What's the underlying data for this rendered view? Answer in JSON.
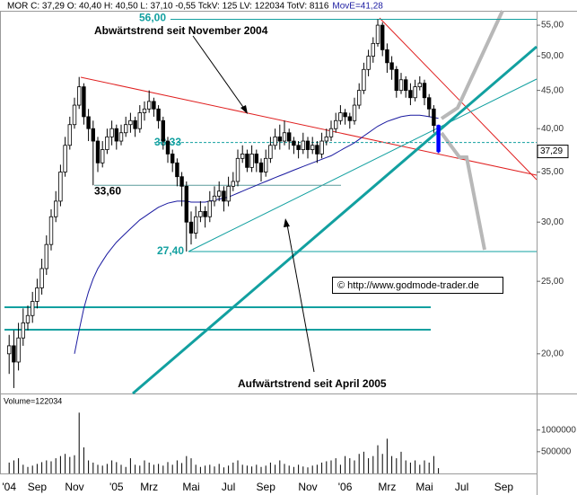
{
  "chart_data": {
    "type": "candlestick",
    "title": "MOR C: 37,29 O: 40,40 H: 40,50 L: 37,10 -0,55 TckV: 125 LV: 122034 TotV: 8116",
    "ma_label": "MovE=41,28",
    "log_scale": true,
    "categories": [
      null,
      "'04",
      null,
      null,
      null,
      null,
      null,
      "Sep",
      null,
      null,
      null,
      null,
      null,
      null,
      null,
      "Nov",
      null,
      null,
      null,
      null,
      null,
      null,
      null,
      null,
      "'05",
      null,
      null,
      null,
      null,
      null,
      null,
      "Mrz",
      null,
      null,
      null,
      null,
      null,
      null,
      null,
      null,
      "Mai",
      null,
      null,
      null,
      null,
      null,
      null,
      null,
      "Jul",
      null,
      null,
      null,
      null,
      null,
      null,
      null,
      "Sep",
      null,
      null,
      null,
      null,
      null,
      null,
      null,
      null,
      "Nov",
      null,
      null,
      null,
      null,
      null,
      null,
      null,
      "'06",
      null,
      null,
      null,
      null,
      null,
      null,
      null,
      null,
      "Mrz",
      null,
      null,
      null,
      null,
      null,
      null,
      null,
      "Mai",
      null,
      null,
      null,
      null,
      null,
      null,
      null,
      "Jul",
      null,
      null,
      null,
      null,
      null,
      null,
      null,
      null,
      "Sep",
      null,
      null,
      null,
      null,
      null,
      null,
      null
    ],
    "open": [
      null,
      20.0,
      20.5,
      19.5,
      21.0,
      22.0,
      22.5,
      23.5,
      24.5,
      26.0,
      28.0,
      30.5,
      32.0,
      35.0,
      38.0,
      40.5,
      43.0,
      45.5,
      41.5,
      40.0,
      38.5,
      36.0,
      37.5,
      39.0,
      40.0,
      38.5,
      39.5,
      40.5,
      41.0,
      40.0,
      42.0,
      42.5,
      43.5,
      42.5,
      41.0,
      38.5,
      37.0,
      36.0,
      34.5,
      33.5,
      30.0,
      29.0,
      30.5,
      31.0,
      30.5,
      32.0,
      32.5,
      33.0,
      32.0,
      33.5,
      34.0,
      36.5,
      37.0,
      35.5,
      37.0,
      36.0,
      35.0,
      36.5,
      38.0,
      39.0,
      38.5,
      39.5,
      38.5,
      38.0,
      37.5,
      38.5,
      37.5,
      38.0,
      37.0,
      38.5,
      39.0,
      40.0,
      41.0,
      42.0,
      41.5,
      41.0,
      43.0,
      45.0,
      48.0,
      50.0,
      52.0,
      55.0,
      51.0,
      49.0,
      48.0,
      45.0,
      46.5,
      45.0,
      44.0,
      45.5,
      46.0,
      44.0,
      42.5,
      40.4,
      null,
      null,
      null,
      null,
      null,
      null,
      null,
      null,
      null,
      null,
      null,
      null,
      null,
      null,
      null,
      null,
      null,
      null,
      null,
      null,
      null
    ],
    "high": [
      null,
      21.2,
      21.5,
      22.0,
      23.0,
      23.2,
      24.2,
      25.2,
      26.8,
      28.8,
      31.2,
      33.0,
      35.8,
      39.0,
      41.5,
      44.0,
      46.9,
      46.0,
      42.5,
      41.0,
      39.0,
      38.5,
      40.0,
      41.0,
      40.5,
      40.5,
      41.5,
      42.0,
      41.5,
      43.0,
      43.5,
      45.0,
      44.0,
      43.0,
      41.5,
      39.0,
      37.5,
      36.5,
      35.0,
      34.0,
      31.0,
      31.5,
      32.0,
      31.5,
      33.0,
      33.5,
      34.0,
      33.5,
      34.5,
      35.0,
      37.5,
      38.0,
      37.5,
      38.0,
      37.5,
      36.5,
      37.5,
      39.0,
      40.0,
      40.5,
      41.0,
      40.0,
      39.0,
      38.5,
      39.5,
      39.0,
      39.0,
      38.5,
      39.5,
      40.0,
      41.0,
      42.0,
      43.0,
      42.5,
      42.0,
      44.0,
      46.0,
      49.0,
      51.0,
      53.0,
      56.0,
      55.5,
      52.0,
      50.0,
      48.5,
      47.5,
      47.0,
      46.0,
      46.5,
      47.0,
      46.5,
      44.5,
      43.0,
      40.5,
      null,
      null,
      null,
      null,
      null,
      null,
      null,
      null,
      null,
      null,
      null,
      null,
      null,
      null,
      null,
      null,
      null,
      null,
      null,
      null,
      null
    ],
    "low": [
      null,
      18.8,
      18.0,
      19.0,
      20.5,
      21.5,
      22.0,
      23.0,
      24.0,
      25.5,
      27.5,
      30.0,
      31.5,
      34.5,
      37.5,
      40.0,
      42.5,
      40.5,
      38.5,
      33.6,
      35.0,
      35.5,
      37.0,
      38.0,
      37.5,
      38.0,
      39.0,
      39.5,
      39.0,
      39.5,
      41.0,
      42.0,
      41.5,
      40.0,
      37.5,
      36.0,
      35.0,
      33.5,
      31.5,
      27.4,
      28.0,
      28.5,
      30.0,
      29.5,
      30.0,
      31.5,
      32.0,
      31.0,
      31.5,
      33.0,
      33.5,
      36.0,
      35.0,
      35.0,
      35.0,
      34.0,
      34.5,
      36.0,
      37.5,
      37.5,
      38.0,
      37.5,
      37.0,
      36.5,
      37.0,
      36.5,
      37.0,
      36.0,
      36.5,
      38.0,
      38.5,
      39.5,
      40.5,
      40.5,
      40.0,
      40.5,
      42.5,
      44.5,
      47.0,
      49.0,
      51.5,
      50.0,
      47.5,
      46.5,
      44.0,
      44.5,
      44.0,
      43.0,
      43.5,
      45.0,
      43.0,
      41.5,
      39.5,
      37.1,
      null,
      null,
      null,
      null,
      null,
      null,
      null,
      null,
      null,
      null,
      null,
      null,
      null,
      null,
      null,
      null,
      null,
      null,
      null,
      null,
      null
    ],
    "close": [
      null,
      20.5,
      19.5,
      21.0,
      22.0,
      22.5,
      23.5,
      24.5,
      26.0,
      28.0,
      30.5,
      32.0,
      35.0,
      38.0,
      40.5,
      43.0,
      45.5,
      41.5,
      40.0,
      38.5,
      36.0,
      37.5,
      39.0,
      40.0,
      38.5,
      39.5,
      40.5,
      41.0,
      40.0,
      42.0,
      42.5,
      43.5,
      42.5,
      41.0,
      38.5,
      37.0,
      36.0,
      34.5,
      33.5,
      30.0,
      29.0,
      30.5,
      31.0,
      30.5,
      32.0,
      32.5,
      33.0,
      32.0,
      33.5,
      34.0,
      36.5,
      37.0,
      35.5,
      37.0,
      36.0,
      35.0,
      36.5,
      38.0,
      39.0,
      38.5,
      39.5,
      38.5,
      38.0,
      37.5,
      38.5,
      37.5,
      38.0,
      37.0,
      38.5,
      39.0,
      40.0,
      41.0,
      42.0,
      41.5,
      41.0,
      43.0,
      45.0,
      48.0,
      50.0,
      52.0,
      55.0,
      51.0,
      49.0,
      48.0,
      45.0,
      46.5,
      45.0,
      44.0,
      45.5,
      46.0,
      44.0,
      42.5,
      40.4,
      37.29,
      null,
      null,
      null,
      null,
      null,
      null,
      null,
      null,
      null,
      null,
      null,
      null,
      null,
      null,
      null,
      null,
      null,
      null,
      null,
      null,
      null
    ],
    "candle_colors": {
      "up": "#ffffff",
      "down": "#000000",
      "last": "#0000ff"
    },
    "ylim": [
      17.7,
      57.5
    ],
    "yticks": [
      {
        "value": 20,
        "label": "20,00"
      },
      {
        "value": 25,
        "label": "25,00"
      },
      {
        "value": 30,
        "label": "30,00"
      },
      {
        "value": 35,
        "label": "35,00"
      },
      {
        "value": 40,
        "label": "40,00"
      },
      {
        "value": 45,
        "label": "45,00"
      },
      {
        "value": 50,
        "label": "50,00"
      },
      {
        "value": 55,
        "label": "55,00"
      }
    ],
    "moving_average": {
      "color": "#1a1aa0",
      "values": [
        null,
        null,
        null,
        null,
        null,
        null,
        null,
        null,
        null,
        null,
        null,
        null,
        null,
        null,
        null,
        20.0,
        21.5,
        23.0,
        24.2,
        25.2,
        26.0,
        26.6,
        27.2,
        27.7,
        28.2,
        28.6,
        29.0,
        29.4,
        29.8,
        30.2,
        30.5,
        30.8,
        31.1,
        31.4,
        31.6,
        31.8,
        31.9,
        32.0,
        32.0,
        32.0,
        31.9,
        31.9,
        31.9,
        31.9,
        32.0,
        32.1,
        32.2,
        32.3,
        32.4,
        32.6,
        32.8,
        33.0,
        33.2,
        33.4,
        33.6,
        33.8,
        34.0,
        34.2,
        34.4,
        34.6,
        34.8,
        35.0,
        35.2,
        35.4,
        35.6,
        35.8,
        36.0,
        36.2,
        36.4,
        36.6,
        36.8,
        37.1,
        37.4,
        37.7,
        38.0,
        38.3,
        38.7,
        39.1,
        39.5,
        39.9,
        40.3,
        40.6,
        40.9,
        41.1,
        41.3,
        41.5,
        41.6,
        41.7,
        41.7,
        41.7,
        41.6,
        41.5,
        41.4,
        41.28,
        null,
        null,
        null,
        null,
        null,
        null,
        null,
        null,
        null,
        null,
        null,
        null,
        null,
        null,
        null,
        null,
        null,
        null,
        null,
        null,
        null
      ]
    },
    "levels": [
      {
        "value": 56,
        "label": "56,00"
      },
      {
        "value": 38.33,
        "label": "38,33"
      },
      {
        "value": 33.6,
        "label": "33,60"
      },
      {
        "value": 27.4,
        "label": "27,40"
      }
    ],
    "price_marker": {
      "value": 37.29,
      "label": "37,29"
    },
    "annotations": [
      "Abwärtstrend seit November 2004",
      "Aufwärtstrend seit April 2005"
    ],
    "copyright": "© http://www.godmode-trader.de",
    "volume": {
      "label": "Volume=122034",
      "color": "#000000",
      "ylim": [
        0,
        1800000
      ],
      "yticks": [
        500000,
        1000000
      ],
      "values": [
        null,
        250000,
        300000,
        350000,
        200000,
        150000,
        180000,
        220000,
        260000,
        300000,
        280000,
        350000,
        400000,
        450000,
        380000,
        420000,
        1400000,
        600000,
        300000,
        250000,
        200000,
        180000,
        220000,
        300000,
        260000,
        200000,
        150000,
        350000,
        200000,
        180000,
        300000,
        250000,
        200000,
        220000,
        180000,
        260000,
        200000,
        300000,
        240000,
        400000,
        350000,
        200000,
        150000,
        180000,
        200000,
        160000,
        220000,
        140000,
        180000,
        250000,
        300000,
        200000,
        180000,
        160000,
        200000,
        150000,
        180000,
        250000,
        200000,
        300000,
        220000,
        180000,
        150000,
        200000,
        160000,
        140000,
        180000,
        200000,
        250000,
        280000,
        300000,
        350000,
        200000,
        400000,
        350000,
        300000,
        450000,
        500000,
        350000,
        400000,
        650000,
        450000,
        800000,
        400000,
        350000,
        500000,
        300000,
        250000,
        300000,
        200000,
        300000,
        250000,
        400000,
        122034,
        null,
        null,
        null,
        null,
        null,
        null,
        null,
        null,
        null,
        null,
        null,
        null,
        null,
        null,
        null,
        null,
        null,
        null,
        null,
        null,
        null
      ]
    }
  }
}
